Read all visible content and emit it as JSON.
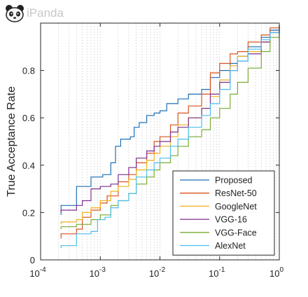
{
  "watermark": {
    "text": "iPanda",
    "icon": "panda-logo-icon"
  },
  "chart_data": {
    "type": "line",
    "xscale": "log",
    "xlim": [
      0.0001,
      1
    ],
    "ylim": [
      0,
      1
    ],
    "xticks": [
      {
        "value": 0.0001,
        "label": "10",
        "exp": "-4"
      },
      {
        "value": 0.001,
        "label": "10",
        "exp": "-3"
      },
      {
        "value": 0.01,
        "label": "10",
        "exp": "-2"
      },
      {
        "value": 0.1,
        "label": "10",
        "exp": "-1"
      },
      {
        "value": 1,
        "label": "10",
        "exp": "0"
      }
    ],
    "yticks": [
      {
        "value": 0,
        "label": "0"
      },
      {
        "value": 0.2,
        "label": "0.2"
      },
      {
        "value": 0.4,
        "label": "0.4"
      },
      {
        "value": 0.6,
        "label": "0.6"
      },
      {
        "value": 0.8,
        "label": "0.8"
      }
    ],
    "ylabel": "True Acceptance Rate",
    "xlabel": "",
    "grid": "x-minor-dotted",
    "legend_position": "bottom-right",
    "series": [
      {
        "name": "Proposed",
        "color": "#1f6fb5",
        "points": [
          [
            0.00022,
            0.19
          ],
          [
            0.00022,
            0.23
          ],
          [
            0.0004,
            0.23
          ],
          [
            0.0004,
            0.31
          ],
          [
            0.0007,
            0.31
          ],
          [
            0.0007,
            0.35
          ],
          [
            0.001,
            0.35
          ],
          [
            0.0011,
            0.36
          ],
          [
            0.0015,
            0.41
          ],
          [
            0.0018,
            0.45
          ],
          [
            0.0018,
            0.48
          ],
          [
            0.0022,
            0.51
          ],
          [
            0.0032,
            0.52
          ],
          [
            0.0037,
            0.56
          ],
          [
            0.0045,
            0.58
          ],
          [
            0.006,
            0.61
          ],
          [
            0.008,
            0.62
          ],
          [
            0.01,
            0.63
          ],
          [
            0.013,
            0.66
          ],
          [
            0.02,
            0.68
          ],
          [
            0.03,
            0.7
          ],
          [
            0.05,
            0.72
          ],
          [
            0.07,
            0.77
          ],
          [
            0.1,
            0.8
          ],
          [
            0.15,
            0.83
          ],
          [
            0.2,
            0.86
          ],
          [
            0.3,
            0.9
          ],
          [
            0.5,
            0.94
          ],
          [
            0.7,
            0.97
          ],
          [
            1,
            0.99
          ]
        ]
      },
      {
        "name": "ResNet-50",
        "color": "#d9531e",
        "points": [
          [
            0.00022,
            0.09
          ],
          [
            0.00022,
            0.11
          ],
          [
            0.0004,
            0.13
          ],
          [
            0.0005,
            0.18
          ],
          [
            0.0007,
            0.21
          ],
          [
            0.001,
            0.24
          ],
          [
            0.0013,
            0.27
          ],
          [
            0.002,
            0.33
          ],
          [
            0.003,
            0.36
          ],
          [
            0.004,
            0.41
          ],
          [
            0.006,
            0.45
          ],
          [
            0.008,
            0.5
          ],
          [
            0.01,
            0.52
          ],
          [
            0.015,
            0.57
          ],
          [
            0.02,
            0.62
          ],
          [
            0.03,
            0.65
          ],
          [
            0.05,
            0.7
          ],
          [
            0.07,
            0.79
          ],
          [
            0.1,
            0.83
          ],
          [
            0.15,
            0.87
          ],
          [
            0.2,
            0.88
          ],
          [
            0.3,
            0.92
          ],
          [
            0.5,
            0.95
          ],
          [
            0.7,
            0.98
          ],
          [
            1,
            0.99
          ]
        ]
      },
      {
        "name": "GoogleNet",
        "color": "#edb120",
        "points": [
          [
            0.00022,
            0.15
          ],
          [
            0.00022,
            0.16
          ],
          [
            0.0004,
            0.17
          ],
          [
            0.0005,
            0.2
          ],
          [
            0.0007,
            0.22
          ],
          [
            0.001,
            0.25
          ],
          [
            0.0015,
            0.29
          ],
          [
            0.002,
            0.31
          ],
          [
            0.003,
            0.34
          ],
          [
            0.004,
            0.38
          ],
          [
            0.006,
            0.42
          ],
          [
            0.008,
            0.45
          ],
          [
            0.01,
            0.48
          ],
          [
            0.015,
            0.52
          ],
          [
            0.02,
            0.57
          ],
          [
            0.03,
            0.6
          ],
          [
            0.05,
            0.64
          ],
          [
            0.07,
            0.69
          ],
          [
            0.1,
            0.76
          ],
          [
            0.15,
            0.82
          ],
          [
            0.2,
            0.86
          ],
          [
            0.3,
            0.88
          ],
          [
            0.5,
            0.92
          ],
          [
            0.7,
            0.96
          ],
          [
            1,
            0.99
          ]
        ]
      },
      {
        "name": "VGG-16",
        "color": "#7e2f8e",
        "points": [
          [
            0.00022,
            0.2
          ],
          [
            0.00022,
            0.21
          ],
          [
            0.0004,
            0.23
          ],
          [
            0.0005,
            0.25
          ],
          [
            0.0007,
            0.3
          ],
          [
            0.001,
            0.31
          ],
          [
            0.0015,
            0.32
          ],
          [
            0.002,
            0.36
          ],
          [
            0.003,
            0.39
          ],
          [
            0.004,
            0.43
          ],
          [
            0.006,
            0.46
          ],
          [
            0.008,
            0.48
          ],
          [
            0.01,
            0.5
          ],
          [
            0.015,
            0.54
          ],
          [
            0.02,
            0.56
          ],
          [
            0.03,
            0.6
          ],
          [
            0.05,
            0.64
          ],
          [
            0.07,
            0.7
          ],
          [
            0.1,
            0.75
          ],
          [
            0.15,
            0.8
          ],
          [
            0.2,
            0.84
          ],
          [
            0.3,
            0.87
          ],
          [
            0.5,
            0.92
          ],
          [
            0.7,
            0.96
          ],
          [
            1,
            0.99
          ]
        ]
      },
      {
        "name": "VGG-Face",
        "color": "#77ac30",
        "points": [
          [
            0.00022,
            0.13
          ],
          [
            0.00022,
            0.14
          ],
          [
            0.0004,
            0.15
          ],
          [
            0.0005,
            0.15
          ],
          [
            0.0007,
            0.17
          ],
          [
            0.001,
            0.19
          ],
          [
            0.0015,
            0.23
          ],
          [
            0.002,
            0.25
          ],
          [
            0.003,
            0.28
          ],
          [
            0.004,
            0.32
          ],
          [
            0.006,
            0.35
          ],
          [
            0.008,
            0.38
          ],
          [
            0.01,
            0.41
          ],
          [
            0.015,
            0.44
          ],
          [
            0.02,
            0.48
          ],
          [
            0.03,
            0.52
          ],
          [
            0.05,
            0.55
          ],
          [
            0.07,
            0.6
          ],
          [
            0.1,
            0.64
          ],
          [
            0.15,
            0.7
          ],
          [
            0.2,
            0.75
          ],
          [
            0.3,
            0.81
          ],
          [
            0.5,
            0.88
          ],
          [
            0.7,
            0.94
          ],
          [
            1,
            0.99
          ]
        ]
      },
      {
        "name": "AlexNet",
        "color": "#4dbeee",
        "points": [
          [
            0.00022,
            0.05
          ],
          [
            0.00022,
            0.06
          ],
          [
            0.0004,
            0.11
          ],
          [
            0.0005,
            0.11
          ],
          [
            0.0007,
            0.12
          ],
          [
            0.0009,
            0.14
          ],
          [
            0.0009,
            0.17
          ],
          [
            0.0012,
            0.18
          ],
          [
            0.0015,
            0.22
          ],
          [
            0.002,
            0.25
          ],
          [
            0.003,
            0.28
          ],
          [
            0.004,
            0.35
          ],
          [
            0.006,
            0.38
          ],
          [
            0.008,
            0.41
          ],
          [
            0.01,
            0.43
          ],
          [
            0.015,
            0.48
          ],
          [
            0.02,
            0.51
          ],
          [
            0.03,
            0.56
          ],
          [
            0.05,
            0.61
          ],
          [
            0.07,
            0.66
          ],
          [
            0.1,
            0.72
          ],
          [
            0.15,
            0.8
          ],
          [
            0.2,
            0.84
          ],
          [
            0.3,
            0.89
          ],
          [
            0.5,
            0.93
          ],
          [
            0.7,
            0.96
          ],
          [
            1,
            0.99
          ]
        ]
      }
    ]
  }
}
